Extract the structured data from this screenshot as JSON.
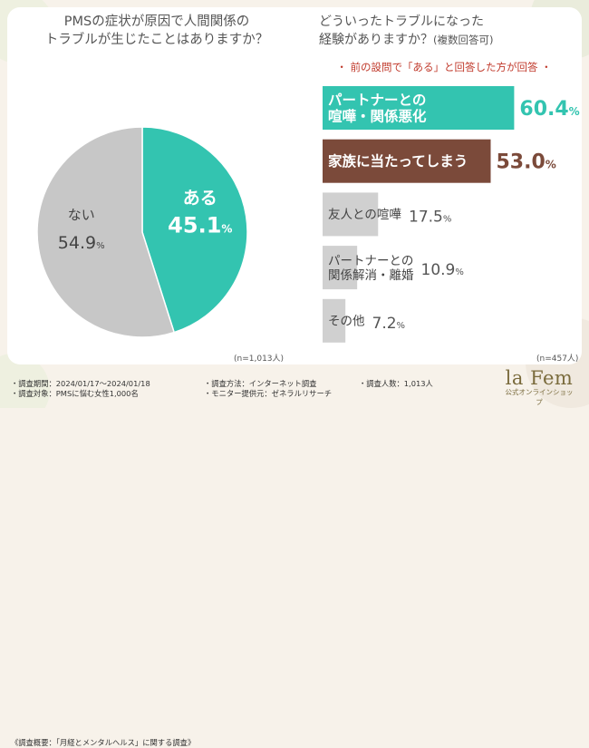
{
  "left_question": {
    "line1": "PMSの症状が原因で人間関係の",
    "line2": "トラブルが生じたことはありますか？"
  },
  "right_question": {
    "line1": "どういったトラブルになった",
    "line2": "経験がありますか？",
    "line2_small": "(複数回答可)"
  },
  "right_note": "・ 前の設問で「ある」と回答した方が回答 ・",
  "chart_data": [
    {
      "type": "pie",
      "title": "PMSの症状が原因で人間関係のトラブルが生じたことはありますか？",
      "slices": [
        {
          "label": "ある",
          "value": 45.1,
          "value_label": "45.1%",
          "color": "#33c4b0"
        },
        {
          "label": "ない",
          "value": 54.9,
          "value_label": "54.9%",
          "color": "#c7c7c7"
        }
      ],
      "sample": "(n=1,013人)"
    },
    {
      "type": "bar",
      "orientation": "horizontal",
      "title": "どういったトラブルになった経験がありますか？(複数回答可)",
      "xlim": [
        0,
        100
      ],
      "categories": [
        [
          "パートナーとの",
          "喧嘩・関係悪化"
        ],
        [
          "家族に当たってしまう"
        ],
        [
          "友人との喧嘩"
        ],
        [
          "パートナーとの",
          "関係解消・離婚"
        ],
        [
          "その他"
        ]
      ],
      "values": [
        60.4,
        53.0,
        17.5,
        10.9,
        7.2
      ],
      "value_labels": [
        {
          "num": "60.4",
          "unit": "%"
        },
        {
          "num": "53.0",
          "unit": "%"
        },
        {
          "num": "17.5",
          "unit": "%"
        },
        {
          "num": "10.9",
          "unit": "%"
        },
        {
          "num": "7.2",
          "unit": "%"
        }
      ],
      "bar_colors": [
        "#33c4b0",
        "#7b4a3a",
        "#d0d0d0",
        "#d0d0d0",
        "#d0d0d0"
      ],
      "label_colors": [
        "#ffffff",
        "#ffffff",
        "#444444",
        "#444444",
        "#444444"
      ],
      "value_colors": [
        "#33c4b0",
        "#7b4a3a",
        "#555555",
        "#555555",
        "#555555"
      ],
      "sample": "(n=457人)"
    }
  ],
  "footer": {
    "title": "《調査概要：「月経とメンタルヘルス」に関する調査》",
    "period": "・調査期間：2024/01/17〜2024/01/18",
    "method": "・調査方法：インターネット調査",
    "count": "・調査人数：1,013人",
    "target": "・調査対象：PMSに悩む女性1,000名",
    "provider": "・モニター提供元：ゼネラルリサーチ"
  },
  "brand": {
    "name": "la Fem",
    "sub": "公式オンラインショップ"
  },
  "colors": {
    "accent": "#33c4b0",
    "brown": "#7b4a3a",
    "gray": "#c7c7c7",
    "note_red": "#c0392b"
  }
}
